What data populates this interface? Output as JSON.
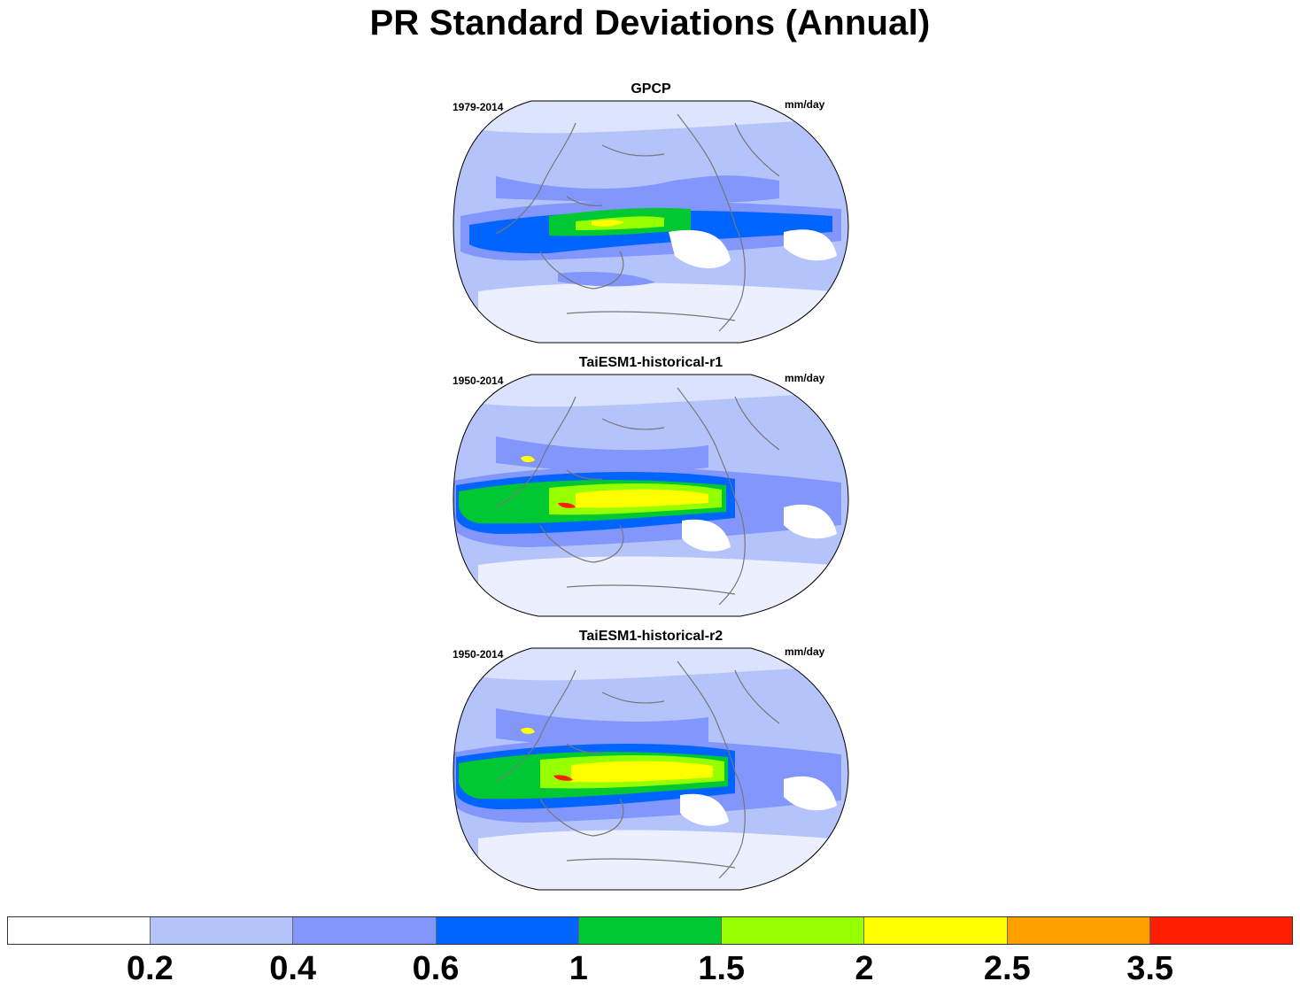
{
  "title": "PR Standard Deviations (Annual)",
  "panels": [
    {
      "name": "GPCP",
      "period": "1979-2014",
      "units": "mm/day"
    },
    {
      "name": "TaiESM1-historical-r1",
      "period": "1950-2014",
      "units": "mm/day"
    },
    {
      "name": "TaiESM1-historical-r2",
      "period": "1950-2014",
      "units": "mm/day"
    }
  ],
  "colorbar": {
    "colors": [
      "#ffffff",
      "#b4c4fb",
      "#8296fb",
      "#0064ff",
      "#00c832",
      "#96ff00",
      "#ffff00",
      "#ffa000",
      "#ff1e00"
    ],
    "labels": [
      "0.2",
      "0.4",
      "0.6",
      "1",
      "1.5",
      "2",
      "2.5",
      "3.5"
    ]
  },
  "projection": "robinson",
  "coastline_color": "#777777"
}
